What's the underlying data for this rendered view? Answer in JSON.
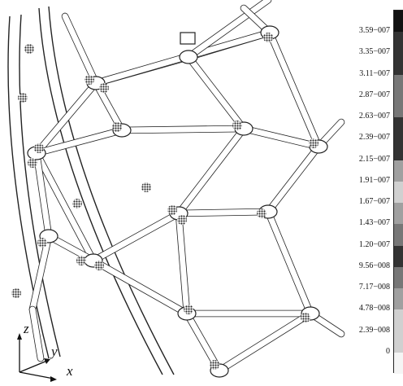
{
  "legend": {
    "ticks": [
      "3.59−007",
      "3.35−007",
      "3.11−007",
      "2.87−007",
      "2.63−007",
      "2.39−007",
      "2.15−007",
      "1.91−007",
      "1.67−007",
      "1.43−007",
      "1.20−007",
      "9.56−008",
      "7.17−008",
      "4.78−008",
      "2.39−008",
      "0"
    ],
    "colors": {
      "top": "#111111",
      "high": "#333333",
      "mid": "#777777",
      "low": "#a0a0a0",
      "light": "#d0d0d0",
      "blank": "#f5f5f5"
    }
  },
  "axes": {
    "z": "z",
    "y": "y",
    "x": "x"
  }
}
